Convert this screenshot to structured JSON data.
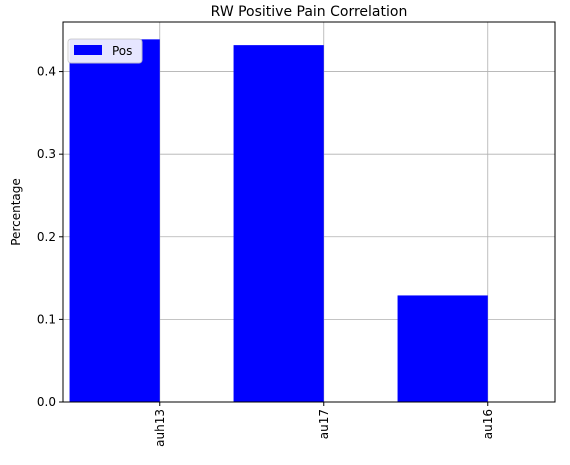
{
  "chart_data": {
    "type": "bar",
    "title": "RW Positive Pain Correlation",
    "xlabel": "",
    "ylabel": "Percentage",
    "categories": [
      "auh13",
      "au17",
      "au16"
    ],
    "series": [
      {
        "name": "Pos",
        "values": [
          0.439,
          0.432,
          0.129
        ],
        "color": "#0000ff"
      }
    ],
    "ylim": [
      0,
      0.46
    ],
    "yticks": [
      0.0,
      0.1,
      0.2,
      0.3,
      0.4
    ],
    "ytick_labels": [
      "0.0",
      "0.1",
      "0.2",
      "0.3",
      "0.4"
    ],
    "grid": true,
    "legend": "top-left",
    "x_tick_rotation": 90
  }
}
